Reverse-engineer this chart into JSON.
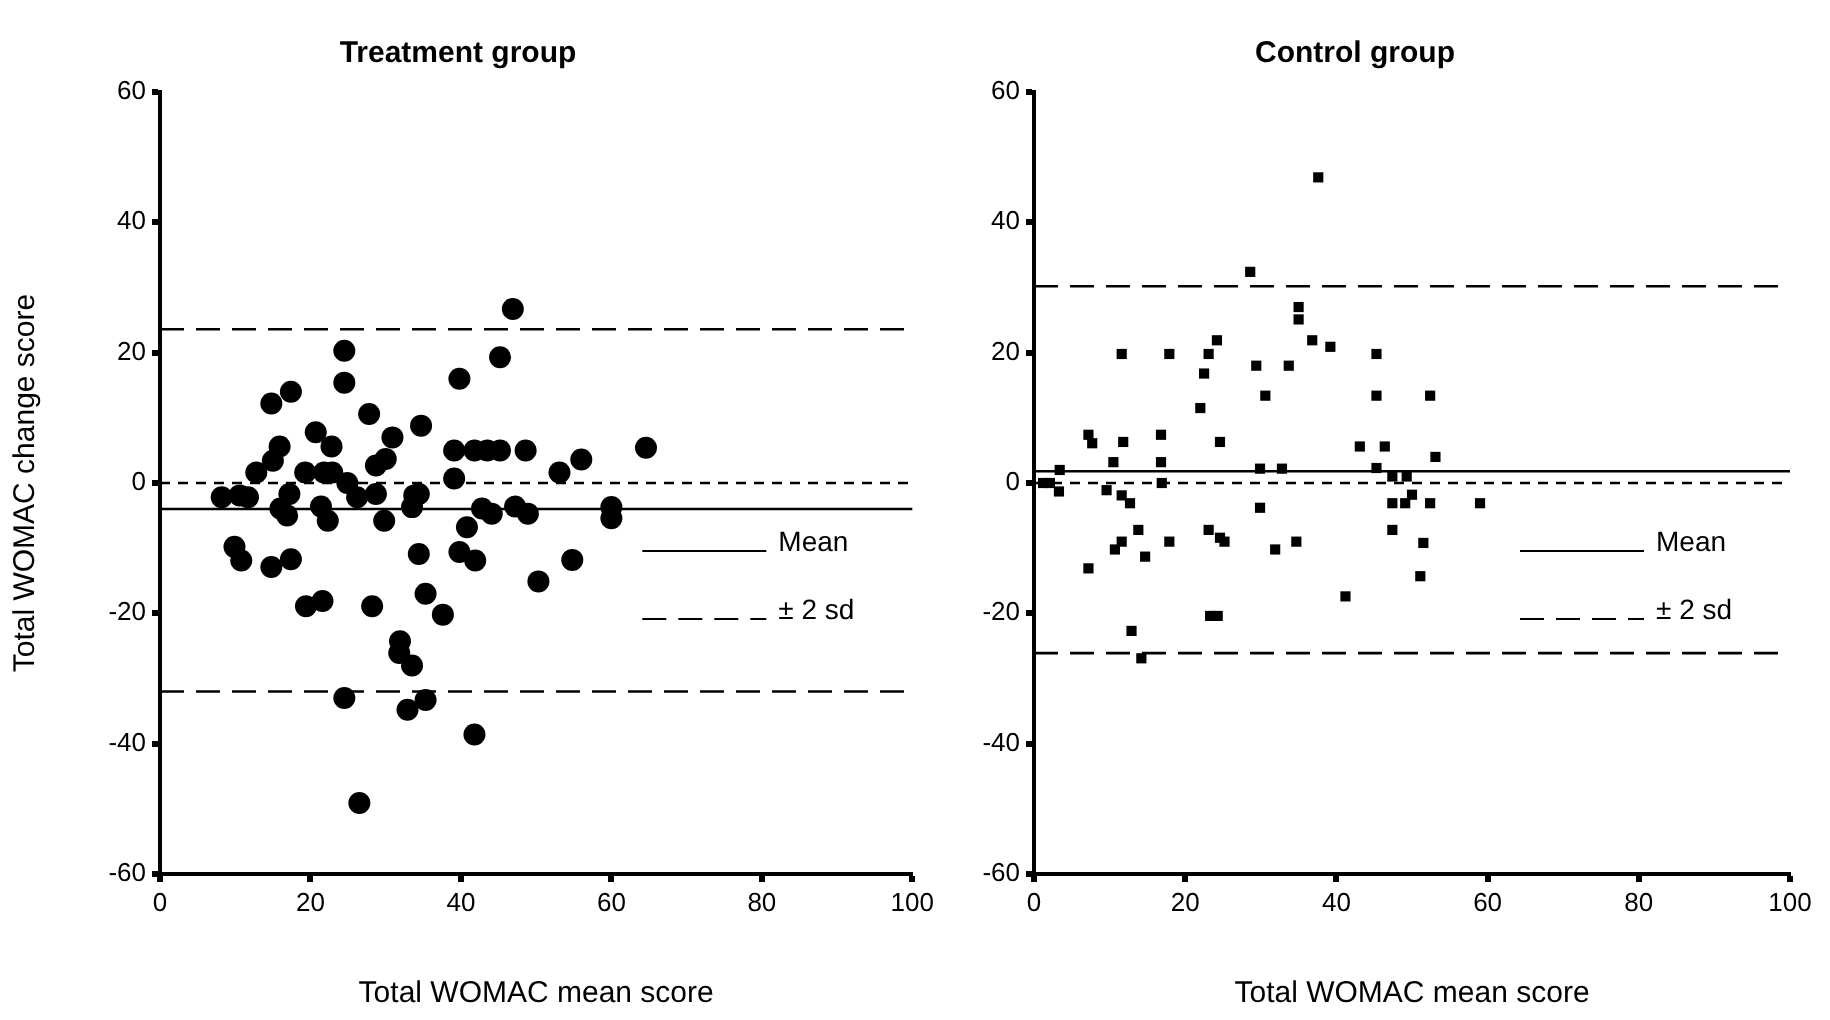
{
  "chart_data": [
    {
      "type": "scatter",
      "title": "Treatment group",
      "xlabel": "Total WOMAC mean score",
      "ylabel": "Total WOMAC change score",
      "marker": "circle",
      "legend": "right",
      "xlim": [
        0,
        100
      ],
      "xticks": [
        0,
        20,
        40,
        60,
        80,
        100
      ],
      "ylim": [
        -60,
        60
      ],
      "yticks": [
        -60,
        -40,
        -20,
        0,
        20,
        40,
        60
      ],
      "series": [
        {
          "color": "#000000",
          "x": [
            8.2,
            10.6,
            11.7,
            9.9,
            10.8,
            12.8,
            14.8,
            17.4,
            15.0,
            15.9,
            14.8,
            17.4,
            16.0,
            17.2,
            16.9,
            19.3,
            19.4,
            21.6,
            20.7,
            22.8,
            21.8,
            22.9,
            21.4,
            22.3,
            24.5,
            24.5,
            24.9,
            26.2,
            24.5,
            27.8,
            28.2,
            28.7,
            30.0,
            30.9,
            28.7,
            29.8,
            31.9,
            31.8,
            33.5,
            32.9,
            35.3,
            34.7,
            33.8,
            33.5,
            34.4,
            34.4,
            35.3,
            37.6,
            39.8,
            39.1,
            39.1,
            40.8,
            39.8,
            41.9,
            41.8,
            43.5,
            45.2,
            45.2,
            46.9,
            48.6,
            42.8,
            44.1,
            47.2,
            48.9,
            50.3,
            41.8,
            53.1,
            56.0,
            64.6,
            60.0,
            60.0,
            54.8,
            26.5
          ],
          "values": [
            -2.2,
            -1.9,
            -2.2,
            -9.8,
            -11.9,
            1.6,
            12.2,
            14.0,
            3.4,
            5.6,
            -12.9,
            -11.7,
            -3.9,
            -1.7,
            -5.0,
            1.6,
            -18.9,
            -18.1,
            7.8,
            5.6,
            1.6,
            1.6,
            -3.6,
            -5.8,
            20.3,
            15.4,
            0,
            -2.2,
            -33.0,
            10.6,
            -18.9,
            2.7,
            3.7,
            7.0,
            -1.7,
            -5.8,
            -24.3,
            -26.1,
            -28.0,
            -34.8,
            -33.3,
            8.8,
            -1.9,
            -3.7,
            -1.7,
            -10.9,
            -17.0,
            -20.2,
            16.0,
            5.0,
            0.7,
            -6.8,
            -10.6,
            -11.9,
            5.0,
            5.0,
            5.0,
            19.3,
            26.7,
            5.0,
            -3.9,
            -4.7,
            -3.6,
            -4.7,
            -15.1,
            -38.6,
            1.6,
            3.6,
            5.4,
            -3.7,
            -5.4,
            -11.8,
            -49.1
          ]
        }
      ],
      "ref_lines": [
        {
          "axis": "y",
          "value": -4,
          "label": "Mean",
          "line_style": "solid"
        },
        {
          "axis": "y",
          "value": 23.6,
          "label": "± 2 sd",
          "line_style": "dashed"
        },
        {
          "axis": "y",
          "value": -32,
          "line_style": "dashed"
        },
        {
          "axis": "y",
          "value": 0,
          "line_style": "dotted"
        }
      ]
    },
    {
      "type": "scatter",
      "title": "Control group",
      "xlabel": "Total WOMAC mean score",
      "marker": "square",
      "legend": "right",
      "xlim": [
        0,
        100
      ],
      "xticks": [
        0,
        20,
        40,
        60,
        80,
        100
      ],
      "ylim": [
        -60,
        60
      ],
      "yticks": [
        -60,
        -40,
        -20,
        0,
        20,
        40,
        60
      ],
      "series": [
        {
          "color": "#000000",
          "x": [
            1.2,
            2.1,
            3.4,
            3.3,
            7.2,
            7.7,
            7.2,
            10.5,
            9.6,
            11.6,
            11.8,
            11.6,
            12.7,
            13.8,
            11.6,
            10.7,
            14.7,
            12.9,
            14.2,
            16.8,
            16.8,
            16.9,
            17.9,
            17.9,
            22.0,
            22.5,
            23.1,
            24.2,
            24.6,
            23.1,
            24.6,
            25.2,
            23.3,
            24.3,
            28.6,
            29.4,
            30.6,
            29.9,
            29.9,
            31.9,
            33.7,
            32.8,
            34.7,
            35.0,
            35.0,
            36.8,
            37.6,
            39.2,
            41.2,
            43.1,
            45.3,
            45.3,
            46.4,
            45.3,
            47.4,
            49.3,
            50.0,
            47.4,
            49.1,
            52.4,
            47.4,
            51.5,
            51.1,
            52.4,
            53.1,
            59.0
          ],
          "values": [
            0,
            0,
            2.0,
            -1.3,
            7.4,
            6.1,
            -13.1,
            3.2,
            -1.1,
            19.8,
            6.3,
            -1.9,
            -3.1,
            -7.2,
            -9.0,
            -10.2,
            -11.3,
            -22.7,
            -26.9,
            7.4,
            3.2,
            0,
            19.8,
            -9.0,
            11.5,
            16.8,
            19.8,
            21.9,
            6.3,
            -7.2,
            -8.4,
            -9.0,
            -20.4,
            -20.4,
            32.4,
            18.0,
            13.4,
            2.2,
            -3.8,
            -10.2,
            18.0,
            2.2,
            -9.0,
            27.0,
            25.1,
            21.9,
            46.9,
            20.9,
            -17.4,
            5.6,
            19.8,
            13.4,
            5.6,
            2.3,
            1.0,
            1.0,
            -1.8,
            -3.1,
            -3.1,
            -3.1,
            -7.2,
            -9.2,
            -14.3,
            13.4,
            4.0,
            -3.1
          ]
        }
      ],
      "ref_lines": [
        {
          "axis": "y",
          "value": 1.8,
          "label": "Mean",
          "line_style": "solid"
        },
        {
          "axis": "y",
          "value": 30.2,
          "label": "± 2 sd",
          "line_style": "dashed"
        },
        {
          "axis": "y",
          "value": -26.1,
          "line_style": "dashed"
        },
        {
          "axis": "y",
          "value": 0,
          "line_style": "dotted"
        }
      ]
    }
  ]
}
